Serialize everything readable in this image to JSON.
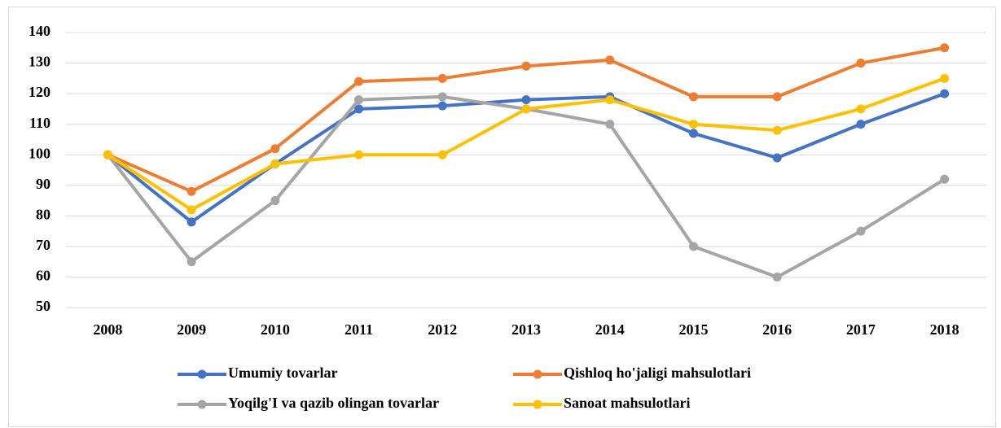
{
  "chart_data": {
    "type": "line",
    "categories": [
      "2008",
      "2009",
      "2010",
      "2011",
      "2012",
      "2013",
      "2014",
      "2015",
      "2016",
      "2017",
      "2018"
    ],
    "series": [
      {
        "name": "Umumiy tovarlar",
        "color": "#4472c4",
        "values": [
          100,
          78,
          97,
          115,
          116,
          118,
          119,
          107,
          99,
          110,
          120
        ]
      },
      {
        "name": "Qishloq ho'jaligi mahsulotlari",
        "color": "#ed7d31",
        "values": [
          100,
          88,
          102,
          124,
          125,
          129,
          131,
          119,
          119,
          130,
          135
        ]
      },
      {
        "name": "Yoqilg'I va qazib olingan tovarlar",
        "color": "#a5a5a5",
        "values": [
          100,
          65,
          85,
          118,
          119,
          115,
          110,
          70,
          60,
          75,
          92
        ]
      },
      {
        "name": "Sanoat mahsulotlari",
        "color": "#ffc000",
        "values": [
          100,
          82,
          97,
          100,
          100,
          115,
          118,
          110,
          108,
          115,
          125
        ]
      }
    ],
    "ylim": [
      50,
      140
    ],
    "yticks": [
      50,
      60,
      70,
      80,
      90,
      100,
      110,
      120,
      130,
      140
    ],
    "grid": true,
    "legend": "bottom"
  }
}
